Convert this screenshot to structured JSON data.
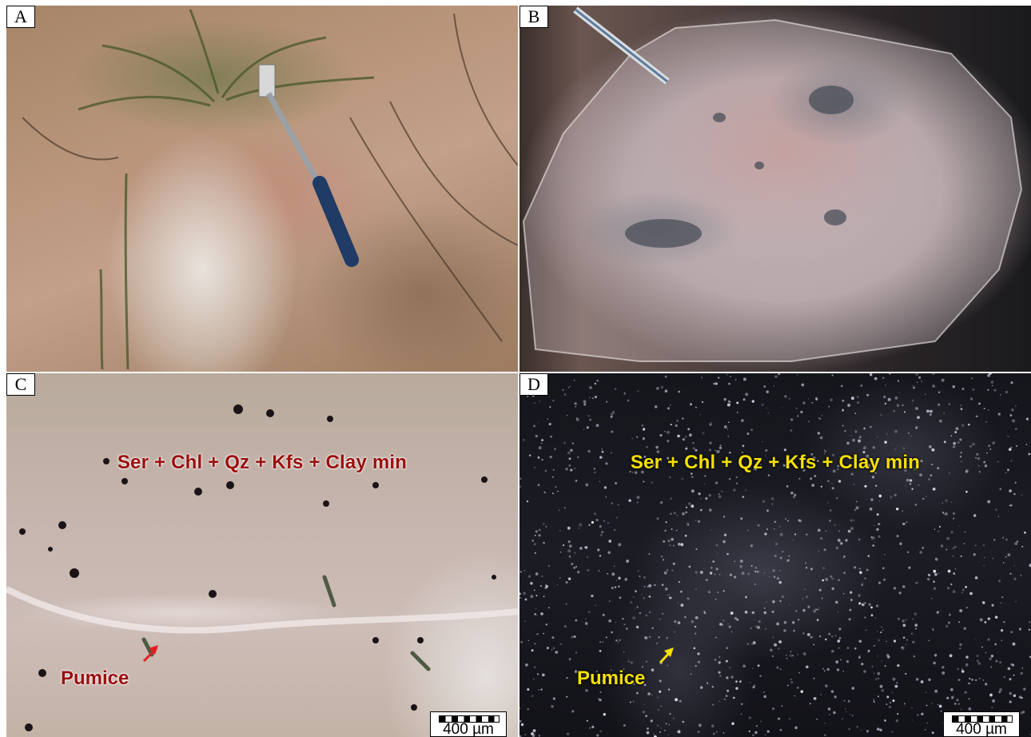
{
  "panels": {
    "a": {
      "letter": "A"
    },
    "b": {
      "letter": "B"
    },
    "c": {
      "letter": "C",
      "mineral_label": "Ser + Chl + Qz + Kfs + Clay min",
      "pumice_label": "Pumice",
      "scale_label": "400 µm",
      "accent_color": "#9b0f0f"
    },
    "d": {
      "letter": "D",
      "mineral_label": "Ser + Chl + Qz + Kfs + Clay min",
      "pumice_label": "Pumice",
      "scale_label": "400 µm",
      "accent_color": "#f5e000"
    }
  }
}
